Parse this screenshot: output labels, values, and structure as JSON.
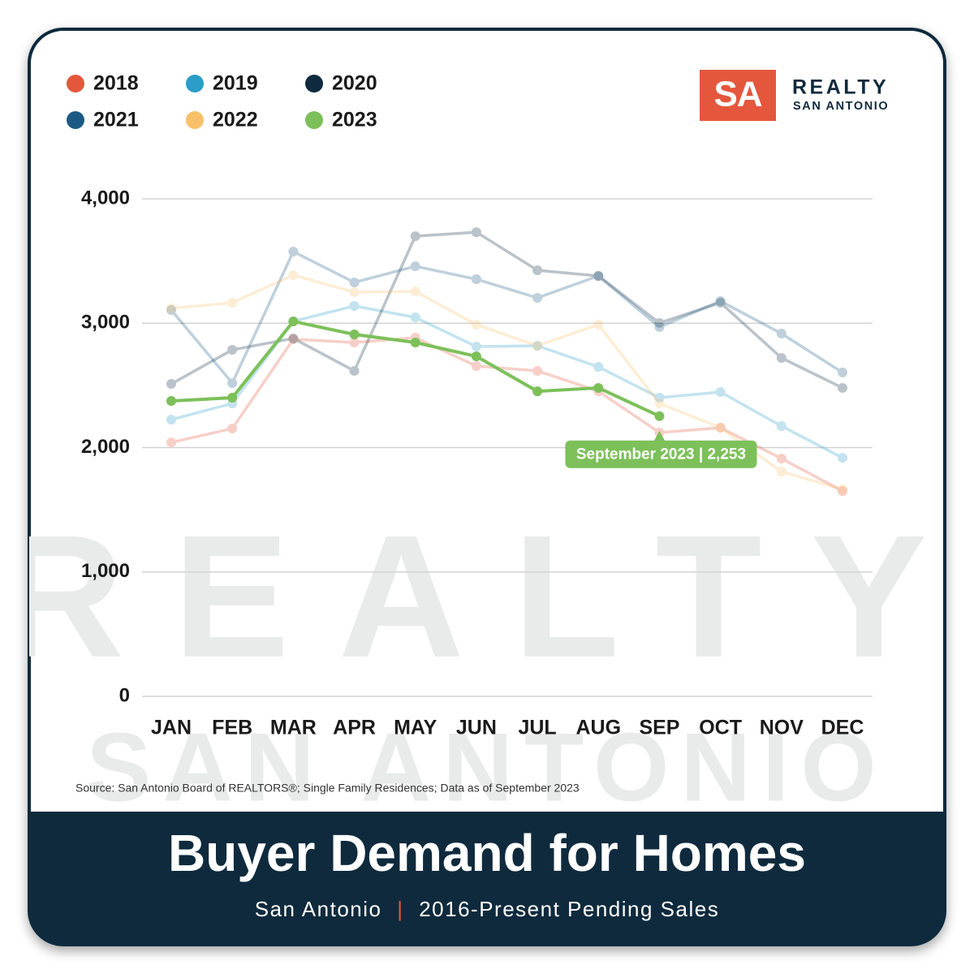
{
  "chart_data": {
    "type": "line",
    "title": "Buyer Demand for Homes",
    "subtitle": "San Antonio",
    "subtitle_separator": "|",
    "subtitle_detail": "2016-Present Pending Sales",
    "source": "Source: San Antonio Board of REALTORS®; Single Family Residences; Data as of September 2023",
    "logo": {
      "mark": "SA",
      "name": "REALTY",
      "tagline": "SAN ANTONIO"
    },
    "watermark": [
      "REALTY",
      "SAN ANTONIO"
    ],
    "categories": [
      "JAN",
      "FEB",
      "MAR",
      "APR",
      "MAY",
      "JUN",
      "JUL",
      "AUG",
      "SEP",
      "OCT",
      "NOV",
      "DEC"
    ],
    "ylim": [
      0,
      4000
    ],
    "yticks": [
      0,
      {
        "value": 1000,
        "label": "1,000"
      },
      {
        "value": 2000,
        "label": "2,000"
      },
      {
        "value": 3000,
        "label": "3,000"
      },
      {
        "value": 4000,
        "label": "4,000"
      }
    ],
    "grid": true,
    "highlight": "2023",
    "series": [
      {
        "name": "2018",
        "color": "#e4573d",
        "values": [
          2042,
          2153,
          2871,
          2845,
          2884,
          2656,
          2617,
          2453,
          2121,
          2160,
          1912,
          1651
        ]
      },
      {
        "name": "2019",
        "color": "#2a9dc8",
        "values": [
          2225,
          2355,
          3015,
          3139,
          3047,
          2812,
          2819,
          2649,
          2401,
          2447,
          2173,
          1918
        ]
      },
      {
        "name": "2020",
        "color": "#0d2a3f",
        "values": [
          2512,
          2786,
          2878,
          2617,
          3700,
          3732,
          3426,
          3380,
          3002,
          3165,
          2721,
          2480
        ]
      },
      {
        "name": "2021",
        "color": "#1c5a85",
        "values": [
          3106,
          2519,
          3576,
          3328,
          3458,
          3354,
          3204,
          3380,
          2969,
          3178,
          2917,
          2604
        ]
      },
      {
        "name": "2022",
        "color": "#f9c06a",
        "values": [
          3119,
          3165,
          3387,
          3250,
          3256,
          2989,
          2819,
          2989,
          2356,
          2160,
          1807,
          1664
        ]
      },
      {
        "name": "2023",
        "color": "#7dc05a",
        "values": [
          2375,
          2401,
          3015,
          2910,
          2845,
          2734,
          2453,
          2480,
          2253,
          null,
          null,
          null
        ]
      }
    ],
    "annotations": [
      {
        "text": "September 2023 | 2,253",
        "series": "2023",
        "category": "SEP"
      }
    ]
  }
}
